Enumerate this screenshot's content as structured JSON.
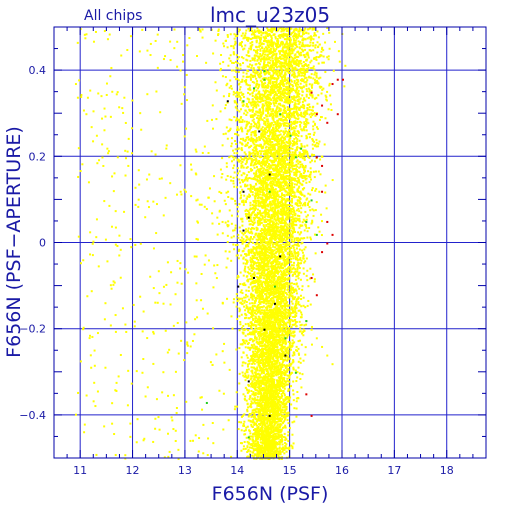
{
  "chart_data": {
    "type": "scatter",
    "title": "lmc_u23z05",
    "subtitle": "All chips",
    "xlabel": "F656N (PSF)",
    "ylabel": "F656N (PSF−APERTURE)",
    "xlim": [
      10.5,
      18.75
    ],
    "ylim": [
      -0.5,
      0.5
    ],
    "x_ticks": [
      11,
      12,
      13,
      14,
      15,
      16,
      17,
      18
    ],
    "y_ticks": [
      -0.4,
      -0.2,
      0,
      0.2,
      0.4
    ],
    "y_tick_labels": [
      "−0.4",
      "−0.2",
      "0",
      "0.2",
      "0.4"
    ],
    "grid": true,
    "colors": {
      "frame": "#0000aa",
      "grid": "#2222cc",
      "text": "#1a1aa6",
      "main": "#ffff00",
      "green": "#22cc22",
      "red": "#dd0000",
      "black": "#000000"
    },
    "series": [
      {
        "color": "#ffff00",
        "description_points": "dense cloud of stars",
        "x": [
          10.9,
          11.0,
          11.1,
          11.2,
          11.3,
          11.4,
          11.5,
          11.7,
          11.9,
          12.1,
          12.3,
          12.5,
          12.7,
          12.9,
          13.0,
          13.1,
          13.2,
          13.3,
          13.4,
          13.5,
          13.6,
          13.7,
          13.8,
          13.9,
          14.0,
          14.1,
          14.2,
          14.3,
          14.4,
          14.5,
          14.6,
          14.7,
          14.8,
          14.9,
          15.0,
          15.1,
          15.2,
          15.3,
          15.4,
          15.5,
          15.6,
          15.7,
          15.8
        ],
        "y": [
          0.37,
          0.34,
          0.3,
          0.27,
          0.25,
          0.23,
          0.22,
          0.2,
          0.18,
          0.17,
          0.16,
          0.15,
          0.14,
          0.12,
          0.12,
          0.11,
          0.1,
          0.09,
          0.08,
          0.07,
          0.06,
          0.05,
          0.04,
          0.03,
          0.02,
          0.01,
          0.0,
          -0.01,
          -0.02,
          -0.03,
          -0.04,
          -0.06,
          -0.08,
          -0.1,
          -0.12,
          -0.14,
          -0.16,
          -0.18,
          -0.2,
          -0.22,
          -0.24,
          -0.26,
          -0.28
        ]
      },
      {
        "color": "#22cc22",
        "x": [
          14.1,
          14.3,
          14.5,
          14.6,
          14.8,
          15.0,
          15.1,
          15.2,
          15.3,
          15.4,
          15.5,
          15.3,
          14.9,
          14.7,
          13.4,
          14.2,
          15.1,
          14.5
        ],
        "y": [
          0.33,
          0.36,
          0.38,
          0.12,
          0.3,
          0.25,
          0.2,
          0.22,
          0.05,
          0.1,
          0.02,
          -0.18,
          -0.22,
          -0.1,
          -0.37,
          -0.45,
          -0.3,
          0.4
        ]
      },
      {
        "color": "#dd0000",
        "x": [
          15.4,
          15.5,
          15.6,
          15.7,
          15.8,
          15.9,
          15.5,
          15.6,
          15.7,
          15.8,
          15.6,
          15.7,
          15.9,
          16.0,
          15.4,
          15.5,
          15.3,
          15.4,
          15.6
        ],
        "y": [
          0.35,
          0.3,
          0.32,
          0.28,
          0.37,
          0.38,
          0.2,
          0.18,
          0.05,
          0.02,
          -0.02,
          0.0,
          0.3,
          0.38,
          -0.08,
          -0.12,
          -0.35,
          -0.4,
          0.12
        ]
      },
      {
        "color": "#000000",
        "x": [
          13.8,
          14.1,
          14.4,
          14.2,
          14.6,
          14.3,
          14.8,
          14.0,
          14.5,
          14.7,
          14.9,
          14.2,
          14.6,
          14.1
        ],
        "y": [
          0.33,
          0.12,
          0.26,
          0.06,
          0.16,
          -0.08,
          -0.03,
          -0.1,
          -0.2,
          -0.14,
          -0.26,
          -0.32,
          -0.4,
          0.03
        ]
      }
    ]
  }
}
